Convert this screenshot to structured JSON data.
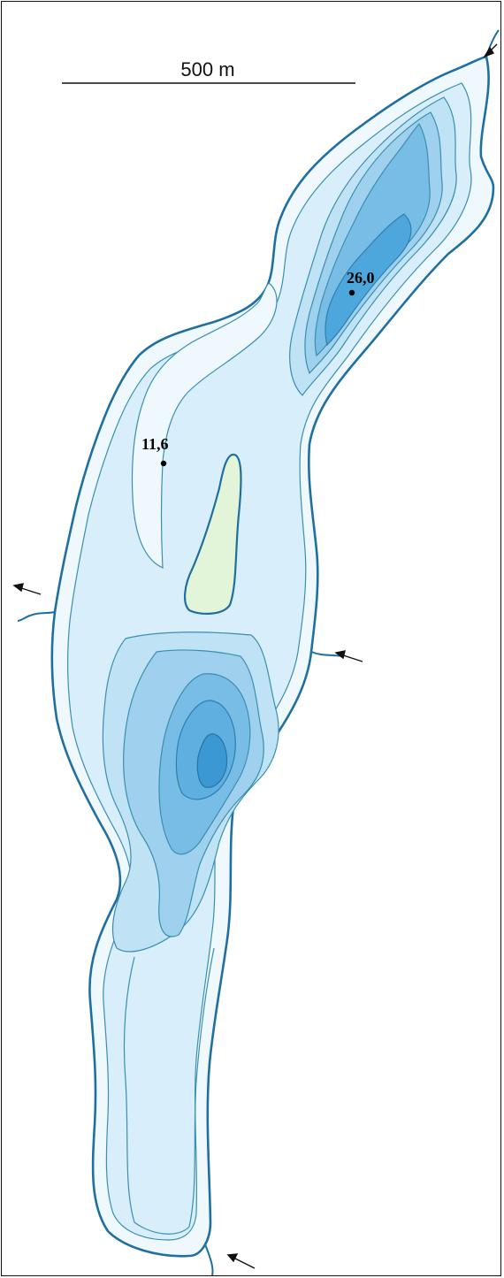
{
  "scale_bar": {
    "label": "500 m"
  },
  "depth_points": [
    {
      "id": "north-basin",
      "label": "26,0"
    },
    {
      "id": "central",
      "label": "11,6"
    }
  ],
  "colors": {
    "shoreline": "#1f6fa0",
    "contour": "#3a8fb0",
    "depth_0": "#eef8fd",
    "depth_1": "#d8eefa",
    "depth_2": "#bfe2f5",
    "depth_3": "#9fd0ee",
    "depth_4": "#78bde6",
    "depth_5": "#4da6dc",
    "island": "#e3f5d9"
  },
  "inflow_arrows": 5
}
